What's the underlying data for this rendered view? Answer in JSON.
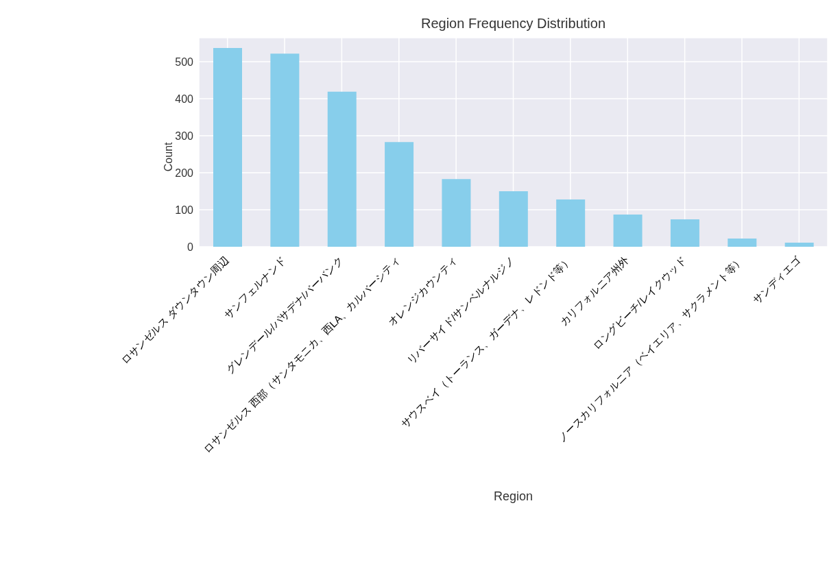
{
  "chart_data": {
    "type": "bar",
    "title": "Region Frequency Distribution",
    "xlabel": "Region",
    "ylabel": "Count",
    "categories": [
      "ロサンゼルス ダウンタウン周辺",
      "サンフェルナンド",
      "グレンデール/パサデナ/バーバンク",
      "ロサンゼルス 西部（サンタモニカ、西LA、カルバーシティ",
      "オレンジカウンティ",
      "リバーサイド/サンベルナルジノ",
      "サウスベイ（トーランス、ガーデナ、レドンド等）",
      "カリフォルニア州外",
      "ロングビーチ/レイクウッド",
      "ノースカリフォルニア（ベイエリア、サクラメント等）",
      "サンディエゴ"
    ],
    "values": [
      537,
      522,
      419,
      283,
      183,
      150,
      128,
      87,
      74,
      22,
      11
    ],
    "color": "#87ceeb",
    "ylim": [
      0,
      565
    ],
    "yticks": [
      0,
      100,
      200,
      300,
      400,
      500
    ],
    "grid": true
  }
}
